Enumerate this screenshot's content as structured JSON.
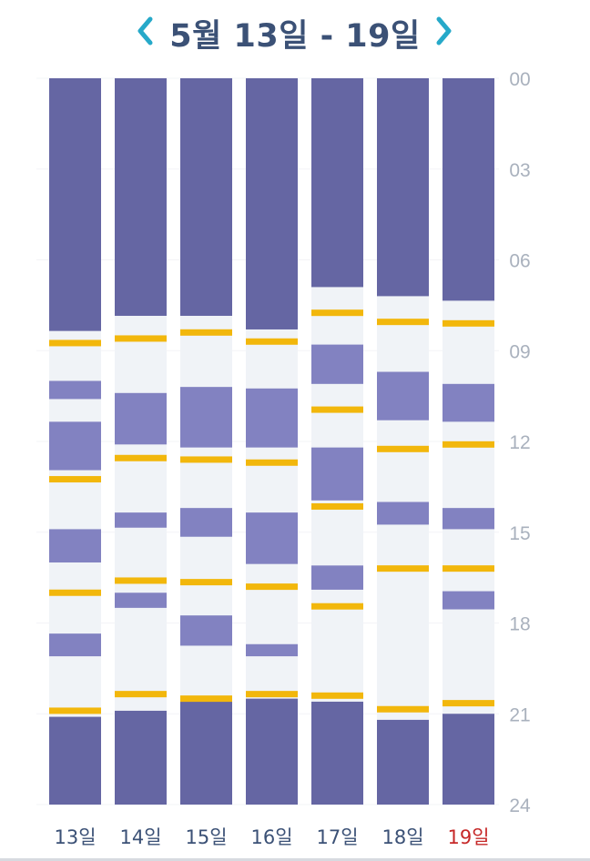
{
  "header": {
    "title": "5월 13일 - 19일",
    "prev_icon": "chevron-left-icon",
    "next_icon": "chevron-right-icon",
    "accent_color": "#26a9c9"
  },
  "chart_data": {
    "type": "timeline",
    "y_axis": {
      "unit": "hour",
      "ylim": [
        0,
        24
      ],
      "ticks": [
        "00",
        "03",
        "06",
        "09",
        "12",
        "15",
        "18",
        "21",
        "24"
      ],
      "tick_values": [
        0,
        3,
        6,
        9,
        12,
        15,
        18,
        21,
        24
      ]
    },
    "colors": {
      "sleep": "#6566a3",
      "nap": "#8282c1",
      "awake": "#f0f3f7",
      "feeding": "#f2b70c",
      "day_label": "#3b5176",
      "sunday_label": "#c62828",
      "tick_label": "#a9b1bd"
    },
    "days": [
      {
        "label": "13일",
        "sleep": [
          [
            0,
            8.35
          ],
          [
            21.1,
            24
          ]
        ],
        "naps": [
          [
            10.0,
            10.6
          ],
          [
            11.35,
            12.95
          ],
          [
            14.9,
            16.0
          ],
          [
            18.35,
            19.1
          ]
        ],
        "feedings": [
          8.75,
          13.25,
          17.0,
          20.9
        ]
      },
      {
        "label": "14일",
        "sleep": [
          [
            0,
            7.85
          ],
          [
            20.9,
            24
          ]
        ],
        "naps": [
          [
            10.4,
            12.1
          ],
          [
            14.35,
            14.85
          ],
          [
            17.0,
            17.5
          ]
        ],
        "feedings": [
          8.6,
          12.55,
          16.6,
          20.35
        ]
      },
      {
        "label": "15일",
        "sleep": [
          [
            0,
            7.85
          ],
          [
            20.55,
            24
          ]
        ],
        "naps": [
          [
            10.2,
            12.2
          ],
          [
            14.2,
            15.15
          ],
          [
            17.75,
            18.75
          ]
        ],
        "feedings": [
          8.4,
          12.6,
          16.65,
          20.5
        ]
      },
      {
        "label": "16일",
        "sleep": [
          [
            0,
            8.3
          ],
          [
            20.5,
            24
          ]
        ],
        "naps": [
          [
            10.25,
            12.2
          ],
          [
            14.35,
            16.05
          ],
          [
            18.7,
            19.1
          ]
        ],
        "feedings": [
          8.7,
          12.7,
          16.8,
          20.35
        ]
      },
      {
        "label": "17일",
        "sleep": [
          [
            0,
            6.9
          ],
          [
            20.6,
            24
          ]
        ],
        "naps": [
          [
            8.8,
            10.1
          ],
          [
            12.2,
            13.95
          ],
          [
            16.1,
            16.9
          ]
        ],
        "feedings": [
          7.75,
          10.95,
          14.15,
          17.45,
          20.4
        ]
      },
      {
        "label": "18일",
        "sleep": [
          [
            0,
            7.2
          ],
          [
            21.2,
            24
          ]
        ],
        "naps": [
          [
            9.7,
            11.3
          ],
          [
            14.0,
            14.75
          ]
        ],
        "feedings": [
          8.05,
          12.25,
          16.2,
          20.85
        ]
      },
      {
        "label": "19일",
        "sleep": [
          [
            0,
            7.35
          ],
          [
            21.0,
            24
          ]
        ],
        "naps": [
          [
            10.1,
            11.35
          ],
          [
            14.2,
            14.9
          ],
          [
            16.95,
            17.55
          ]
        ],
        "feedings": [
          8.1,
          12.1,
          16.2,
          20.65
        ]
      }
    ],
    "highlight_day_index": 6
  }
}
